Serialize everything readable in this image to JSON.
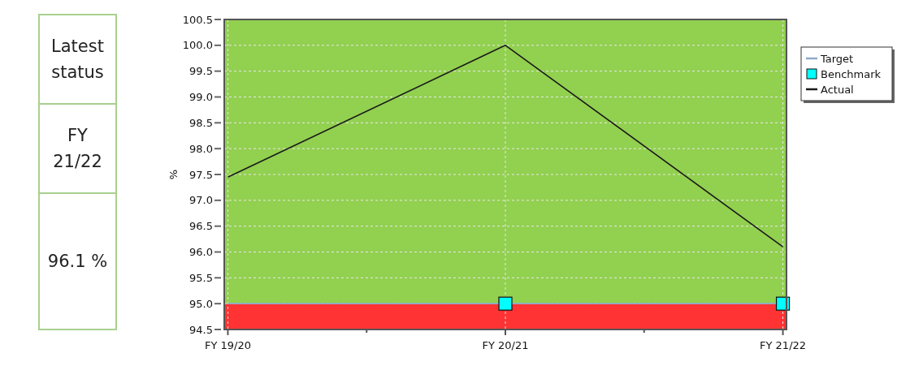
{
  "chart_data": {
    "type": "line",
    "ylabel": "%",
    "categories": [
      "FY 19/20",
      "FY 20/21",
      "FY 21/22"
    ],
    "series": [
      {
        "name": "Target",
        "type": "line",
        "color": "#8fa9c9",
        "values": [
          95,
          95,
          95
        ]
      },
      {
        "name": "Benchmark",
        "type": "scatter",
        "marker": "square",
        "color": "#00ffff",
        "values": [
          null,
          95,
          95
        ]
      },
      {
        "name": "Actual",
        "color": "#1a1a1a",
        "values": [
          97.45,
          100,
          96.1
        ]
      }
    ],
    "ylim": [
      94.5,
      100.5
    ],
    "yticks": [
      {
        "value": 94.5,
        "label": "94.5"
      },
      {
        "value": 95,
        "label": "95.0"
      },
      {
        "value": 95.5,
        "label": "95.5"
      },
      {
        "value": 96,
        "label": "96.0"
      },
      {
        "value": 96.5,
        "label": "96.5"
      },
      {
        "value": 97,
        "label": "97.0"
      },
      {
        "value": 97.5,
        "label": "97.5"
      },
      {
        "value": 98,
        "label": "98.0"
      },
      {
        "value": 98.5,
        "label": "98.5"
      },
      {
        "value": 99,
        "label": "99.0"
      },
      {
        "value": 99.5,
        "label": "99.5"
      },
      {
        "value": 100,
        "label": "100.0"
      },
      {
        "value": 100.5,
        "label": "100.5"
      }
    ],
    "bands": [
      {
        "axis": "y",
        "from": 95,
        "to": 100.5,
        "color": "#92d050"
      },
      {
        "axis": "y",
        "from": 94.5,
        "to": 95,
        "color": "#ff3333"
      }
    ],
    "grid": true,
    "legend": "right",
    "annotations": [
      "Latest status",
      "FY 21/22",
      "96.1 %"
    ]
  }
}
